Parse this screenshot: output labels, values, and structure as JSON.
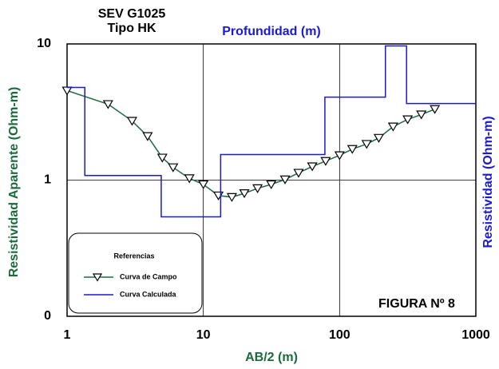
{
  "chart_data": {
    "type": "line",
    "title": [
      "SEV G1025",
      "Tipo HK"
    ],
    "subtitle": "Profundidad (m)",
    "xlabel": "AB/2 (m)",
    "ylabel": "Resistividad Aparente (Ohm-m)",
    "y2label": "Resistividad (Ohm-m)",
    "annotation": "FIGURA Nº 8",
    "legend_title": "Referencias",
    "legend_position": "bottom-left",
    "xscale": "log",
    "yscale": "log",
    "xlim": [
      1,
      1000
    ],
    "ylim": [
      0.1,
      10
    ],
    "xticks": [
      1,
      10,
      100,
      1000
    ],
    "yticks": [
      {
        "value": 0.1,
        "label": "0"
      },
      1,
      10
    ],
    "grid": true,
    "series": [
      {
        "name": "Curva de Campo",
        "color": "#1a6b3a",
        "marker": "triangle-down",
        "x": [
          1,
          2.0,
          3.0,
          3.9,
          5.0,
          6.0,
          7.9,
          10,
          12.9,
          16.2,
          20,
          25,
          31.5,
          39.8,
          50,
          63,
          79,
          100,
          124,
          158,
          194,
          247,
          316,
          398,
          500
        ],
        "values": [
          4.54,
          3.61,
          2.72,
          2.1,
          1.46,
          1.24,
          1.03,
          0.93,
          0.77,
          0.75,
          0.8,
          0.87,
          0.93,
          1.01,
          1.13,
          1.26,
          1.38,
          1.52,
          1.69,
          1.84,
          2.04,
          2.47,
          2.79,
          3.03,
          3.32
        ]
      },
      {
        "name": "Curva Calculada",
        "color": "#1a1ad6",
        "marker": "none",
        "x": [
          1,
          1.35,
          1.35,
          4.91,
          4.91,
          13.4,
          13.4,
          78,
          78,
          217,
          217,
          310,
          310,
          1000
        ],
        "values": [
          4.79,
          4.79,
          1.08,
          1.08,
          0.537,
          0.537,
          1.54,
          1.54,
          4.07,
          4.07,
          9.67,
          9.67,
          3.65,
          3.65
        ]
      }
    ]
  }
}
